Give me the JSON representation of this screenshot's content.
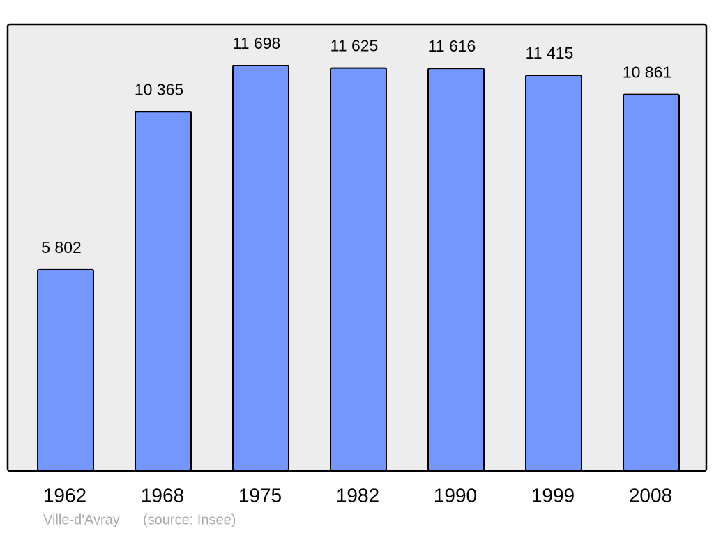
{
  "chart_data": {
    "type": "bar",
    "categories": [
      "1962",
      "1968",
      "1975",
      "1982",
      "1990",
      "1999",
      "2008"
    ],
    "values": [
      5802,
      10365,
      11698,
      11625,
      11616,
      11415,
      10861
    ],
    "value_labels": [
      "5 802",
      "10 365",
      "11 698",
      "11 625",
      "11 616",
      "11 415",
      "10 861"
    ],
    "color": "#7396ff",
    "caption": "Ville-d'Avray",
    "source": "(source: Insee)"
  }
}
